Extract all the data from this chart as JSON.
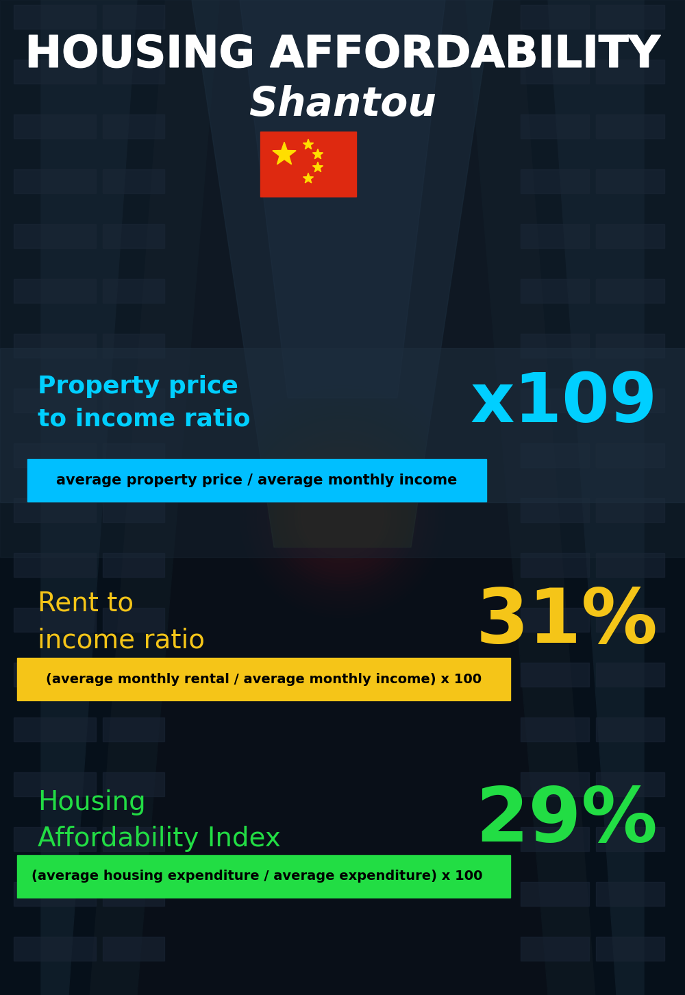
{
  "title_line1": "HOUSING AFFORDABILITY",
  "title_line2": "Shantou",
  "bg_color": "#0a111c",
  "section1_label": "Property price\nto income ratio",
  "section1_value": "x109",
  "section1_label_color": "#00cfff",
  "section1_value_color": "#00cfff",
  "section1_sub": "average property price / average monthly income",
  "section1_sub_bg": "#00bfff",
  "section1_sub_color": "#000000",
  "section2_label": "Rent to\nincome ratio",
  "section2_value": "31%",
  "section2_label_color": "#f5c518",
  "section2_value_color": "#f5c518",
  "section2_sub": "(average monthly rental / average monthly income) x 100",
  "section2_sub_bg": "#f5c518",
  "section2_sub_color": "#000000",
  "section3_label": "Housing\nAffordability Index",
  "section3_value": "29%",
  "section3_label_color": "#22dd44",
  "section3_value_color": "#22dd44",
  "section3_sub": "(average housing expenditure / average expenditure) x 100",
  "section3_sub_bg": "#22dd44",
  "section3_sub_color": "#000000",
  "flag_red": "#de2910",
  "flag_yellow": "#ffde00"
}
